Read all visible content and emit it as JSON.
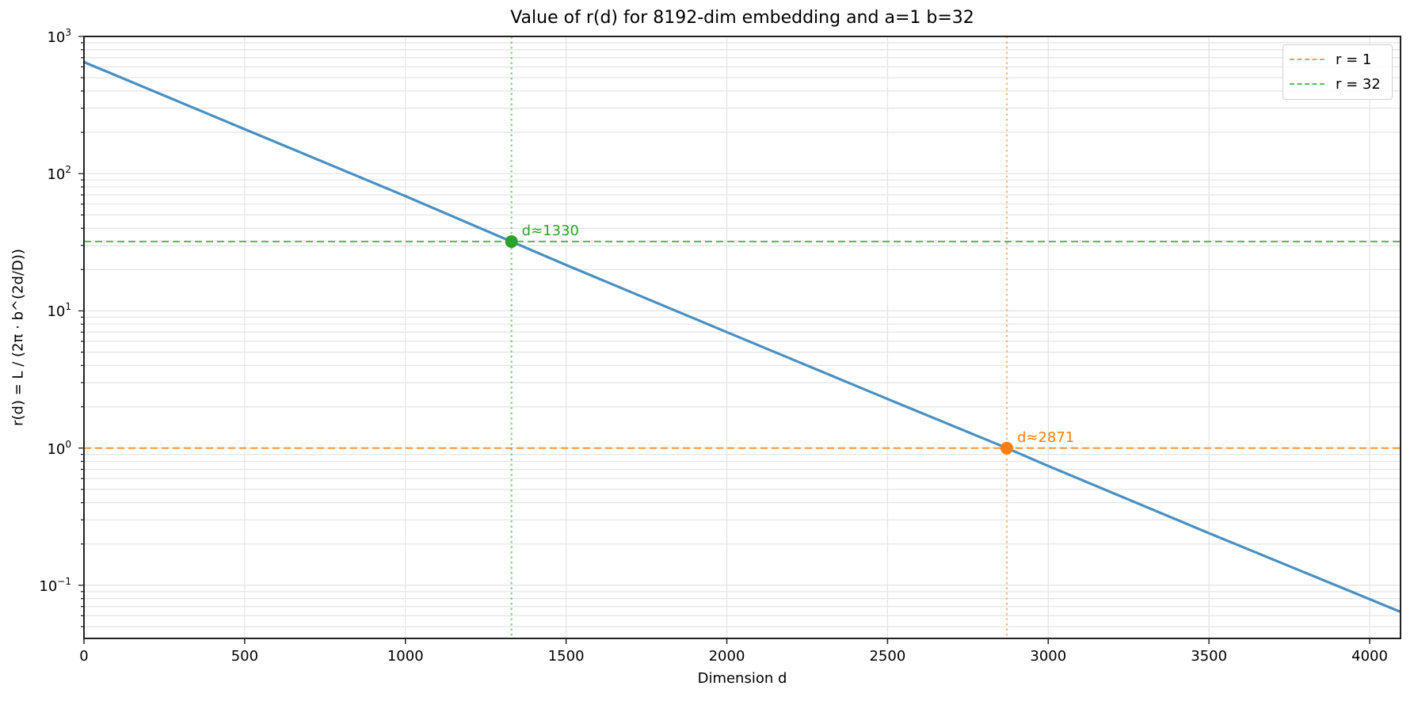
{
  "chart_data": {
    "type": "line",
    "title": "Value of r(d) for 8192-dim embedding and a=1 b=32",
    "xlabel": "Dimension d",
    "ylabel": "r(d) = L / (2π · b^(2d/D))",
    "xscale": "linear",
    "yscale": "log",
    "xlim": [
      0,
      4096
    ],
    "ylim": [
      0.041,
      1000
    ],
    "grid": true,
    "x_ticks": [
      0,
      500,
      1000,
      1500,
      2000,
      2500,
      3000,
      3500,
      4000
    ],
    "x_tick_labels": [
      "0",
      "500",
      "1000",
      "1500",
      "2000",
      "2500",
      "3000",
      "3500",
      "4000"
    ],
    "y_ticks": [
      0.1,
      1,
      10,
      100,
      1000
    ],
    "y_tick_labels": [
      {
        "base": "10",
        "exp": "−1"
      },
      {
        "base": "10",
        "exp": "0"
      },
      {
        "base": "10",
        "exp": "1"
      },
      {
        "base": "10",
        "exp": "2"
      },
      {
        "base": "10",
        "exp": "3"
      }
    ],
    "series": [
      {
        "name": "r(d)",
        "color": "#4a90c2",
        "style": "solid",
        "x": [
          0,
          500,
          1000,
          1330,
          1500,
          2000,
          2500,
          2871,
          3000,
          3500,
          4096
        ],
        "y": [
          650,
          211,
          68.6,
          32,
          21.6,
          7.0,
          2.28,
          1.0,
          0.74,
          0.24,
          0.064
        ]
      }
    ],
    "reference_lines": [
      {
        "name": "r = 1",
        "orientation": "horizontal",
        "y": 1,
        "color": "#ff7f0e",
        "style": "dashed"
      },
      {
        "name": "r = 32",
        "orientation": "horizontal",
        "y": 32,
        "color": "#2ca02c",
        "style": "dashed"
      },
      {
        "orientation": "vertical",
        "x": 1330,
        "color": "#2ca02c",
        "style": "dotted"
      },
      {
        "orientation": "vertical",
        "x": 2871,
        "color": "#ff7f0e",
        "style": "dotted"
      }
    ],
    "markers": [
      {
        "x": 1330,
        "y": 32,
        "color": "#2ca02c",
        "label": "d≈1330"
      },
      {
        "x": 2871,
        "y": 1,
        "color": "#ff7f0e",
        "label": "d≈2871"
      }
    ],
    "legend": {
      "position": "upper right",
      "entries": [
        {
          "label": "r = 1",
          "color": "#ff7f0e",
          "style": "dashed"
        },
        {
          "label": "r = 32",
          "color": "#2ca02c",
          "style": "dashed"
        }
      ]
    }
  },
  "colors": {
    "main_line": "#4a90c2",
    "orange": "#ff7f0e",
    "green": "#2ca02c",
    "grid": "#e6e6e6",
    "axis": "#222222"
  }
}
